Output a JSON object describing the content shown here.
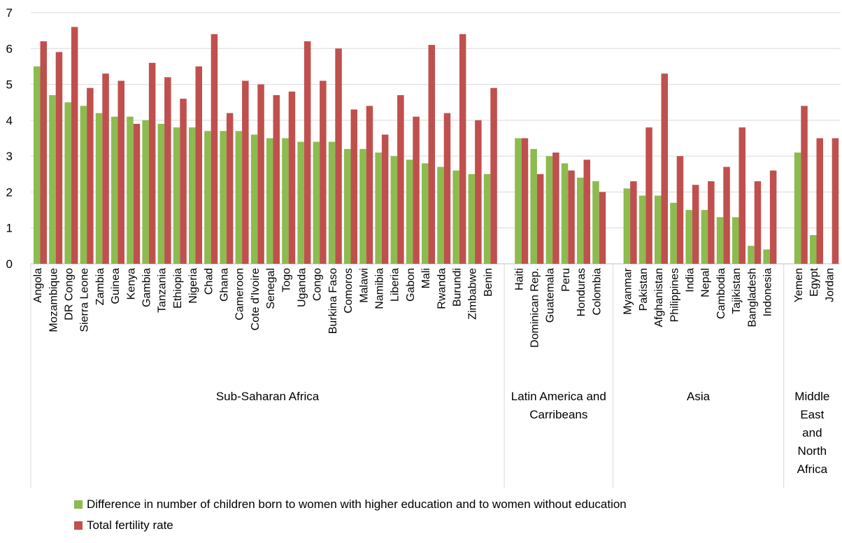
{
  "chart_data": {
    "type": "bar",
    "ylim": [
      0,
      7
    ],
    "yticks": [
      0,
      1,
      2,
      3,
      4,
      5,
      6,
      7
    ],
    "grid": true,
    "legend_position": "bottom",
    "groups": [
      {
        "name": "Sub-Saharan Africa",
        "categories": [
          "Angola",
          "Mozambique",
          "DR Congo",
          "Sierra Leone",
          "Zambia",
          "Guinea",
          "Kenya",
          "Gambia",
          "Tanzania",
          "Ethiopia",
          "Nigeria",
          "Chad",
          "Ghana",
          "Cameroon",
          "Cote d'Ivoire",
          "Senegal",
          "Togo",
          "Uganda",
          "Congo",
          "Burkina Faso",
          "Comoros",
          "Malawi",
          "Namibia",
          "Liberia",
          "Gabon",
          "Mali",
          "Rwanda",
          "Burundi",
          "Zimbabwe",
          "Benin"
        ]
      },
      {
        "name": "Latin America and Carribeans",
        "categories": [
          "Haiti",
          "Dominican Rep.",
          "Guatemala",
          "Peru",
          "Honduras",
          "Colombia"
        ]
      },
      {
        "name": "Asia",
        "categories": [
          "Myanmar",
          "Pakistan",
          "Afghanistan",
          "Philippines",
          "India",
          "Nepal",
          "Cambodia",
          "Tajikistan",
          "Bangladesh",
          "Indonesia"
        ]
      },
      {
        "name": "Middle East and North Africa",
        "categories": [
          "Yemen",
          "Egypt",
          "Jordan"
        ]
      }
    ],
    "series": [
      {
        "name": "Difference in number of children born to women with higher education and to women without education",
        "color": "#8CBB4F",
        "values": [
          [
            5.5,
            4.7,
            4.5,
            4.4,
            4.2,
            4.1,
            4.1,
            4.0,
            3.9,
            3.8,
            3.8,
            3.7,
            3.7,
            3.7,
            3.6,
            3.5,
            3.5,
            3.4,
            3.4,
            3.4,
            3.2,
            3.2,
            3.1,
            3.0,
            2.9,
            2.8,
            2.7,
            2.6,
            2.5,
            2.5
          ],
          [
            3.5,
            3.2,
            3.0,
            2.8,
            2.4,
            2.3
          ],
          [
            2.1,
            1.9,
            1.9,
            1.7,
            1.5,
            1.5,
            1.3,
            1.3,
            0.5,
            0.4
          ],
          [
            3.1,
            0.8,
            0
          ]
        ]
      },
      {
        "name": "Total fertility rate",
        "color": "#C0504D",
        "values": [
          [
            6.2,
            5.9,
            6.6,
            4.9,
            5.3,
            5.1,
            3.9,
            5.6,
            5.2,
            4.6,
            5.5,
            6.4,
            4.2,
            5.1,
            5.0,
            4.7,
            4.8,
            6.2,
            5.1,
            6.0,
            4.3,
            4.4,
            3.6,
            4.7,
            4.1,
            6.1,
            4.2,
            6.4,
            4.0,
            4.9
          ],
          [
            3.5,
            2.5,
            3.1,
            2.6,
            2.9,
            2.0
          ],
          [
            2.3,
            3.8,
            5.3,
            3.0,
            2.2,
            2.3,
            2.7,
            3.8,
            2.3,
            2.6
          ],
          [
            4.4,
            3.5,
            3.5
          ]
        ]
      }
    ]
  },
  "colors": {
    "grid": "#d9d9d9",
    "axis": "#bfbfbf"
  }
}
